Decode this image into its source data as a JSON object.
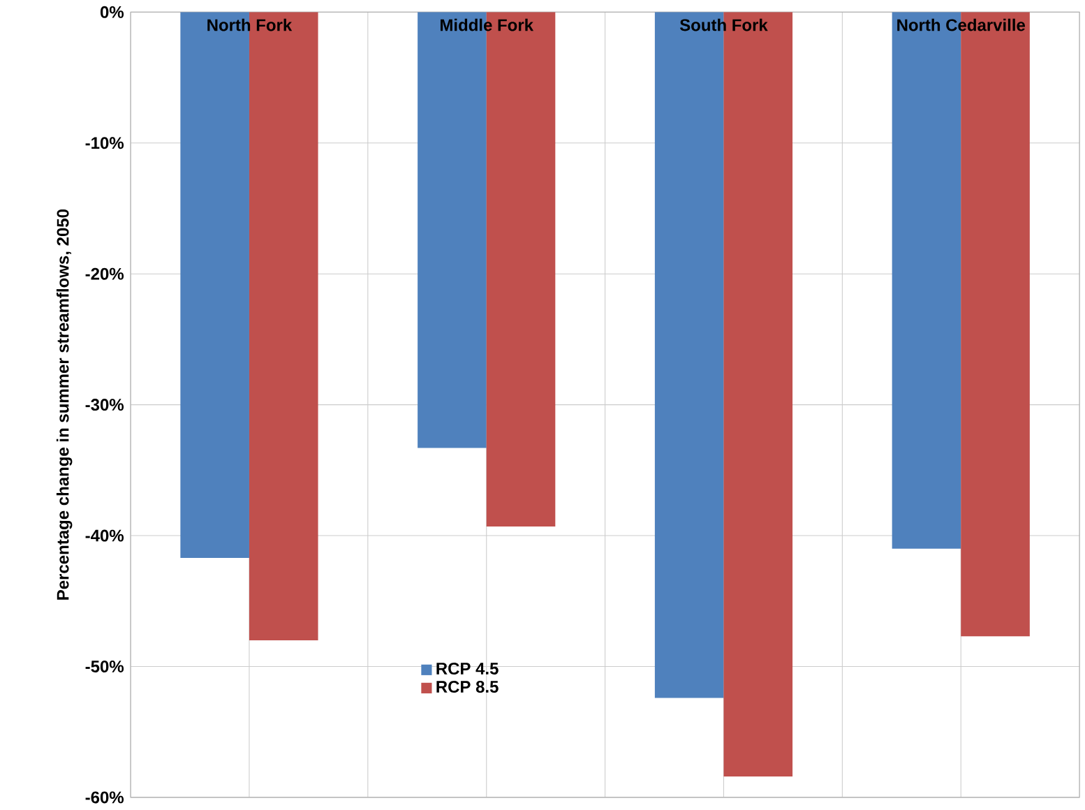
{
  "chart_data": {
    "type": "bar",
    "ylabel": "Percentage change in summer streamflows, 2050",
    "categories": [
      "North Fork",
      "Middle Fork",
      "South Fork",
      "North Cedarville"
    ],
    "series": [
      {
        "name": "RCP 4.5",
        "color": "#4f81bd",
        "values": [
          -41.7,
          -33.3,
          -52.4,
          -41.0
        ]
      },
      {
        "name": "RCP 8.5",
        "color": "#c0504d",
        "values": [
          -48.0,
          -39.3,
          -58.4,
          -47.7
        ]
      }
    ],
    "ylim": [
      -60,
      0
    ],
    "yticks": [
      {
        "value": -60,
        "label": "-60%"
      },
      {
        "value": -50,
        "label": "-50%"
      },
      {
        "value": -40,
        "label": "-40%"
      },
      {
        "value": -30,
        "label": "-30%"
      },
      {
        "value": -20,
        "label": "-20%"
      },
      {
        "value": -10,
        "label": "-10%"
      },
      {
        "value": 0,
        "label": "0%"
      }
    ],
    "grid": true,
    "legend": "bottom left"
  }
}
